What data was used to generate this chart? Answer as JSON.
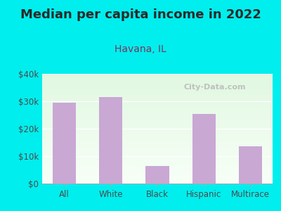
{
  "title": "Median per capita income in 2022",
  "subtitle": "Havana, IL",
  "categories": [
    "All",
    "White",
    "Black",
    "Hispanic",
    "Multirace"
  ],
  "values": [
    29500,
    31500,
    6500,
    25500,
    13500
  ],
  "bar_color": "#c9a8d4",
  "background_outer": "#00eeee",
  "title_color": "#2a2a2a",
  "subtitle_color": "#7a3560",
  "tick_color": "#4a4a4a",
  "ylim": [
    0,
    40000
  ],
  "yticks": [
    0,
    10000,
    20000,
    30000,
    40000
  ],
  "ytick_labels": [
    "$0",
    "$10k",
    "$20k",
    "$30k",
    "$40k"
  ],
  "watermark": "City-Data.com",
  "title_fontsize": 13,
  "subtitle_fontsize": 10,
  "tick_fontsize": 8.5,
  "bar_width": 0.5
}
